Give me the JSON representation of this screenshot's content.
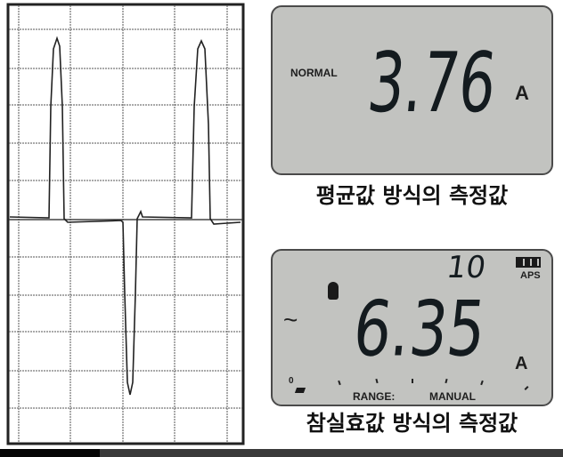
{
  "top_display": {
    "mode_label": "NORMAL",
    "reading": "3.76",
    "unit": "A"
  },
  "top_caption": "평균값 방식의 측정값",
  "bottom_display": {
    "small_reading": "10",
    "aps_label": "APS",
    "reading": "6.35",
    "unit": "A",
    "ac_symbol": "~",
    "zero_label": "0",
    "range_label": "RANGE:",
    "range_value": "MANUAL",
    "icons": [
      "battery-icon",
      "bulb-icon",
      "ac-wave-icon",
      "hold-icon"
    ]
  },
  "bottom_caption": "참실효값 방식의 측정값",
  "colors": {
    "lcd_background": "#c2c3c0",
    "segment": "#141b1f"
  }
}
